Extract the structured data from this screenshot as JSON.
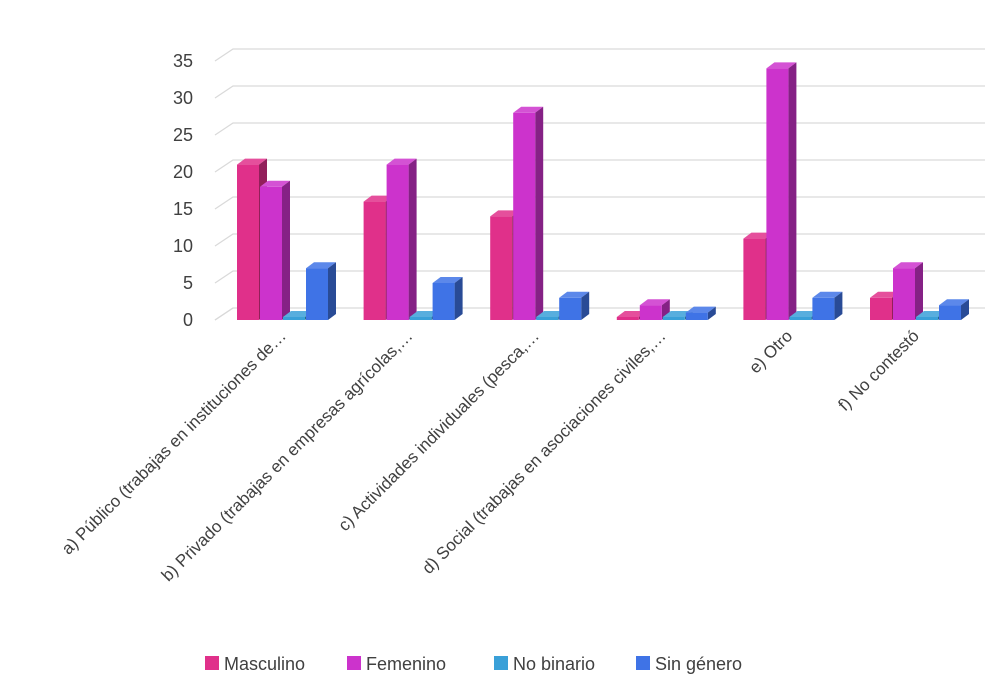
{
  "chart_data": {
    "type": "bar",
    "style": "3d-clustered-column",
    "categories": [
      "a) Público (trabajas en instituciones de…",
      "b) Privado (trabajas en empresas agrícolas,…",
      "c) Actividades individuales (pesca,…",
      "d) Social (trabajas en asociaciones civiles,…",
      "e) Otro",
      "f) No contestó"
    ],
    "series": [
      {
        "name": "Masculino",
        "color": "#e0308a",
        "values": [
          21,
          16,
          14,
          0,
          11,
          3
        ]
      },
      {
        "name": "Femenino",
        "color": "#cc33cc",
        "values": [
          18,
          21,
          28,
          2,
          34,
          7
        ]
      },
      {
        "name": "No binario",
        "color": "#3aa0d8",
        "values": [
          0,
          0,
          0,
          0,
          0,
          0
        ]
      },
      {
        "name": "Sin género",
        "color": "#3f73e6",
        "values": [
          7,
          5,
          3,
          1,
          3,
          2
        ]
      }
    ],
    "ylim": [
      0,
      35
    ],
    "yticks": [
      "0",
      "5",
      "10",
      "15",
      "20",
      "25",
      "30",
      "35"
    ],
    "grid": true,
    "legend": "bottom"
  }
}
